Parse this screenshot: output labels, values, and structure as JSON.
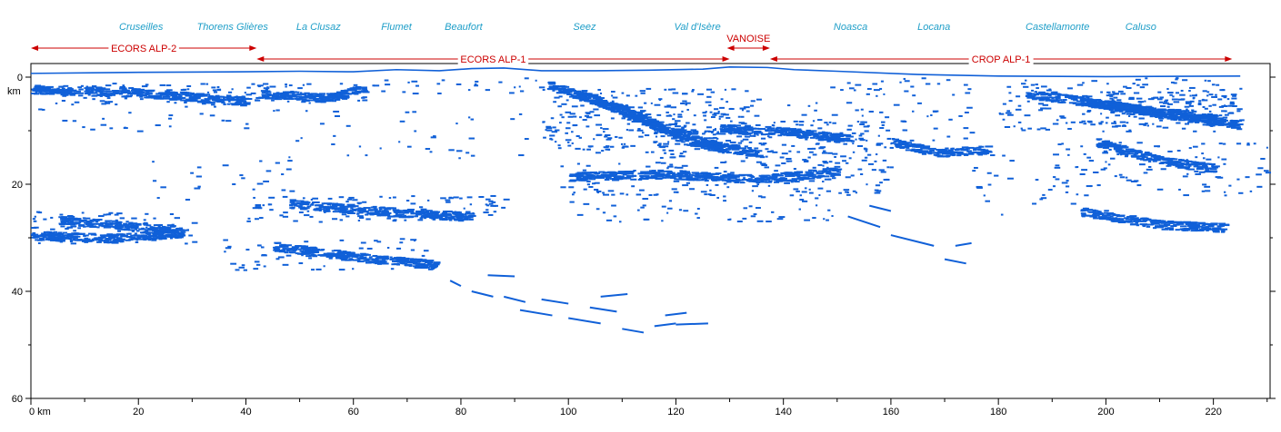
{
  "chart_data": {
    "type": "scatter",
    "title": "",
    "xlabel": "km",
    "ylabel": "km",
    "xlim": [
      0,
      230
    ],
    "ylim": [
      60,
      0
    ],
    "y_inverted": true,
    "x_ticks": [
      0,
      20,
      40,
      60,
      80,
      100,
      120,
      140,
      160,
      180,
      200,
      220
    ],
    "x_tick_labels": [
      "0 km",
      "20",
      "40",
      "60",
      "80",
      "100",
      "120",
      "140",
      "160",
      "180",
      "200",
      "220"
    ],
    "y_ticks": [
      0,
      20,
      40,
      60
    ],
    "y_tick_labels": [
      "0",
      "20",
      "40",
      "60"
    ],
    "y_unit_label": "km",
    "reflector_color": "#1060d8",
    "profile_color": "#cc0000",
    "location_color": "#1e9ec8",
    "locations": [
      {
        "name": "Cruseilles",
        "x": 20.5
      },
      {
        "name": "Thorens Glières",
        "x": 37.5
      },
      {
        "name": "La Clusaz",
        "x": 53.5
      },
      {
        "name": "Flumet",
        "x": 68
      },
      {
        "name": "Beaufort",
        "x": 80.5
      },
      {
        "name": "Seez",
        "x": 103
      },
      {
        "name": "Val d'Isère",
        "x": 124
      },
      {
        "name": "Noasca",
        "x": 152.5
      },
      {
        "name": "Locana",
        "x": 168
      },
      {
        "name": "Castellamonte",
        "x": 191
      },
      {
        "name": "Caluso",
        "x": 206.5
      }
    ],
    "profiles": [
      {
        "name": "ECORS ALP-2",
        "x_start": 0,
        "x_end": 42,
        "y": 9
      },
      {
        "name": "ECORS ALP-1",
        "x_start": 42,
        "x_end": 130,
        "y": 2
      },
      {
        "name": "VANOISE",
        "x_start": 129.5,
        "x_end": 137.5,
        "y": 13
      },
      {
        "name": "CROP ALP-1",
        "x_start": 137.5,
        "x_end": 223.5,
        "y": 2
      }
    ],
    "surface": [
      [
        0,
        -0.7
      ],
      [
        20,
        -0.9
      ],
      [
        40,
        -1.0
      ],
      [
        50,
        -1.1
      ],
      [
        60,
        -1.0
      ],
      [
        68,
        -1.4
      ],
      [
        76,
        -1.2
      ],
      [
        82,
        -1.6
      ],
      [
        88,
        -1.7
      ],
      [
        95,
        -1.2
      ],
      [
        105,
        -1.2
      ],
      [
        115,
        -1.3
      ],
      [
        125,
        -1.5
      ],
      [
        130,
        -1.9
      ],
      [
        137,
        -1.8
      ],
      [
        142,
        -1.4
      ],
      [
        150,
        -1.1
      ],
      [
        165,
        -0.5
      ],
      [
        180,
        -0.2
      ],
      [
        200,
        -0.1
      ],
      [
        225,
        -0.2
      ]
    ],
    "reflector_zones": [
      {
        "x": [
          1,
          42
        ],
        "y": [
          1,
          5
        ],
        "density": 0.55
      },
      {
        "x": [
          42,
          62
        ],
        "y": [
          1,
          5
        ],
        "density": 0.45
      },
      {
        "x": [
          60,
          72
        ],
        "y": [
          0,
          3
        ],
        "density": 0.35
      },
      {
        "x": [
          75,
          95
        ],
        "y": [
          0,
          3
        ],
        "density": 0.25
      },
      {
        "x": [
          1,
          40
        ],
        "y": [
          4,
          10
        ],
        "density": 0.12
      },
      {
        "x": [
          20,
          50
        ],
        "y": [
          15,
          23
        ],
        "density": 0.1
      },
      {
        "x": [
          45,
          95
        ],
        "y": [
          6,
          16
        ],
        "density": 0.07
      },
      {
        "x": [
          95,
          135
        ],
        "y": [
          2,
          14
        ],
        "density": 0.5
      },
      {
        "x": [
          115,
          160
        ],
        "y": [
          8,
          16
        ],
        "density": 0.45
      },
      {
        "x": [
          98,
          160
        ],
        "y": [
          16,
          22
        ],
        "density": 0.35
      },
      {
        "x": [
          100,
          150
        ],
        "y": [
          22,
          27
        ],
        "density": 0.2
      },
      {
        "x": [
          140,
          175
        ],
        "y": [
          0,
          12
        ],
        "density": 0.18
      },
      {
        "x": [
          180,
          225
        ],
        "y": [
          0,
          10
        ],
        "density": 0.35
      },
      {
        "x": [
          195,
          225
        ],
        "y": [
          3,
          9
        ],
        "density": 0.6
      },
      {
        "x": [
          190,
          230
        ],
        "y": [
          12,
          22
        ],
        "density": 0.22
      },
      {
        "x": [
          0,
          30
        ],
        "y": [
          25,
          31
        ],
        "density": 0.5
      },
      {
        "x": [
          40,
          88
        ],
        "y": [
          22,
          27
        ],
        "density": 0.4
      },
      {
        "x": [
          35,
          75
        ],
        "y": [
          30,
          36
        ],
        "density": 0.25
      },
      {
        "x": [
          175,
          200
        ],
        "y": [
          14,
          26
        ],
        "density": 0.1
      }
    ],
    "reflector_lines": [
      [
        [
          0,
          2.2
        ],
        [
          20,
          2.8
        ],
        [
          40,
          4.5
        ]
      ],
      [
        [
          42,
          3.0
        ],
        [
          55,
          3.8
        ],
        [
          62,
          2.0
        ]
      ],
      [
        [
          96,
          1.5
        ],
        [
          110,
          6.0
        ],
        [
          122,
          12.0
        ],
        [
          135,
          14.0
        ]
      ],
      [
        [
          102,
          3.0
        ],
        [
          115,
          8.5
        ],
        [
          128,
          13.0
        ]
      ],
      [
        [
          128,
          9.5
        ],
        [
          140,
          10.0
        ],
        [
          152,
          11.5
        ]
      ],
      [
        [
          100,
          18.5
        ],
        [
          118,
          18.0
        ],
        [
          135,
          19.0
        ],
        [
          150,
          17.5
        ]
      ],
      [
        [
          0,
          29.5
        ],
        [
          15,
          30.0
        ],
        [
          28,
          29.0
        ]
      ],
      [
        [
          5,
          26.5
        ],
        [
          20,
          28.0
        ],
        [
          28,
          28.5
        ]
      ],
      [
        [
          48,
          23.5
        ],
        [
          65,
          25.0
        ],
        [
          82,
          26.0
        ]
      ],
      [
        [
          45,
          31.5
        ],
        [
          60,
          33.5
        ],
        [
          75,
          35.0
        ]
      ],
      [
        [
          185,
          3.0
        ],
        [
          200,
          5.0
        ],
        [
          215,
          7.5
        ],
        [
          225,
          9.0
        ]
      ],
      [
        [
          195,
          4.5
        ],
        [
          210,
          6.5
        ],
        [
          222,
          8.0
        ]
      ],
      [
        [
          198,
          12.0
        ],
        [
          210,
          15.5
        ],
        [
          220,
          17.0
        ]
      ],
      [
        [
          195,
          25.0
        ],
        [
          210,
          27.5
        ],
        [
          222,
          28.0
        ]
      ],
      [
        [
          160,
          12.0
        ],
        [
          168,
          14.0
        ],
        [
          178,
          13.5
        ]
      ]
    ],
    "deep_segments": [
      [
        [
          78,
          38.0
        ],
        [
          80,
          39.0
        ]
      ],
      [
        [
          85,
          37.0
        ],
        [
          90,
          37.2
        ]
      ],
      [
        [
          82,
          40.0
        ],
        [
          86,
          41.0
        ]
      ],
      [
        [
          88,
          41.0
        ],
        [
          92,
          42.0
        ]
      ],
      [
        [
          91,
          43.5
        ],
        [
          97,
          44.5
        ]
      ],
      [
        [
          95,
          41.5
        ],
        [
          100,
          42.3
        ]
      ],
      [
        [
          100,
          45.0
        ],
        [
          106,
          46.0
        ]
      ],
      [
        [
          104,
          43.0
        ],
        [
          109,
          43.8
        ]
      ],
      [
        [
          106,
          41.0
        ],
        [
          111,
          40.5
        ]
      ],
      [
        [
          110,
          47.0
        ],
        [
          114,
          47.7
        ]
      ],
      [
        [
          116,
          46.5
        ],
        [
          120,
          46.0
        ]
      ],
      [
        [
          118,
          44.5
        ],
        [
          122,
          44.0
        ]
      ],
      [
        [
          120,
          46.2
        ],
        [
          126,
          46.0
        ]
      ],
      [
        [
          152,
          26.0
        ],
        [
          158,
          28.0
        ]
      ],
      [
        [
          160,
          29.5
        ],
        [
          168,
          31.5
        ]
      ],
      [
        [
          170,
          34.0
        ],
        [
          174,
          34.8
        ]
      ],
      [
        [
          172,
          31.5
        ],
        [
          175,
          31.0
        ]
      ],
      [
        [
          156,
          24.0
        ],
        [
          160,
          25.0
        ]
      ]
    ]
  }
}
